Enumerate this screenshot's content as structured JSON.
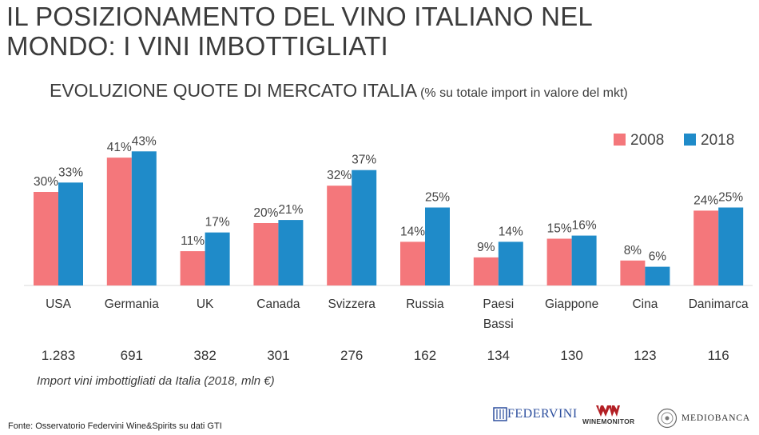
{
  "header": {
    "title": "IL POSIZIONAMENTO DEL VINO ITALIANO NEL\nMONDO: I VINI IMBOTTIGLIATI"
  },
  "chart": {
    "title": "EVOLUZIONE QUOTE DI MERCATO ITALIA",
    "subtitle": "(% su totale import in valore del mkt)"
  },
  "chart_data": {
    "type": "bar",
    "title": "EVOLUZIONE QUOTE DI MERCATO ITALIA",
    "subtitle": "(% su totale import in valore del mkt)",
    "categories": [
      "USA",
      "Germania",
      "UK",
      "Canada",
      "Svizzera",
      "Russia",
      "Paesi Bassi",
      "Giappone",
      "Cina",
      "Danimarca"
    ],
    "series": [
      {
        "name": "2008",
        "color": "#f4777b",
        "values": [
          30,
          41,
          11,
          20,
          32,
          14,
          9,
          15,
          8,
          24
        ]
      },
      {
        "name": "2018",
        "color": "#1f8bc9",
        "values": [
          33,
          43,
          17,
          21,
          37,
          25,
          14,
          16,
          6,
          25
        ]
      }
    ],
    "value_suffix": "%",
    "ylim": [
      0,
      50
    ],
    "grid": false,
    "legend_position": "top-right",
    "import_values": [
      "1.283",
      "691",
      "382",
      "301",
      "276",
      "162",
      "134",
      "130",
      "123",
      "116"
    ]
  },
  "footer": {
    "import_note": "Import vini imbottigliati da Italia (2018, mln €)",
    "source": "Fonte: Osservatorio Federvini Wine&Spirits su dati GTI",
    "logos": {
      "federvini": "FEDERVINI",
      "winemonitor": "WINEMONITOR",
      "mediobanca": "MEDIOBANCA"
    }
  }
}
